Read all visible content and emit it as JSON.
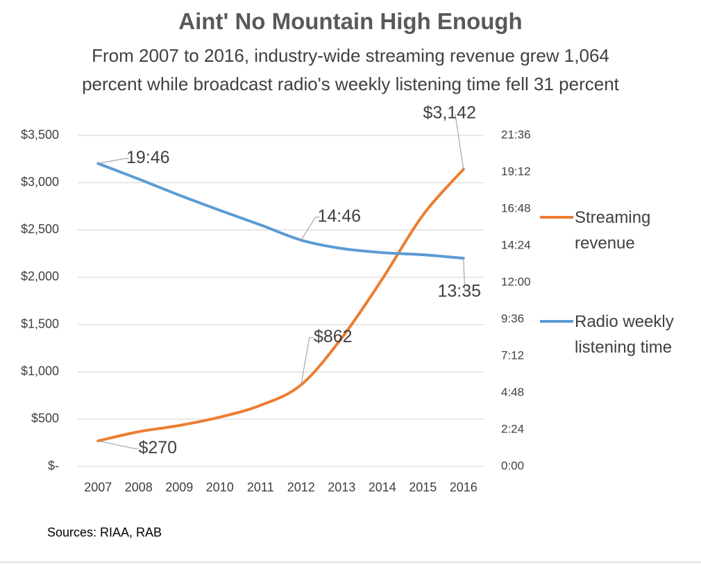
{
  "chart_data": {
    "type": "line",
    "title": "Aint' No Mountain High Enough",
    "subtitle": "From 2007 to 2016, industry-wide streaming revenue grew 1,064 percent while broadcast radio's weekly listening time fell 31 percent",
    "source": "Sources: RIAA, RAB",
    "categories": [
      "2007",
      "2008",
      "2009",
      "2010",
      "2011",
      "2012",
      "2013",
      "2014",
      "2015",
      "2016"
    ],
    "series": [
      {
        "name": "Streaming revenue",
        "color": "#ed7d31",
        "values": [
          270,
          367,
          433,
          521,
          646,
          862,
          1357,
          1981,
          2656,
          3142
        ],
        "value_labels": [
          "$270",
          null,
          null,
          null,
          null,
          "$862",
          null,
          null,
          null,
          "$3,142"
        ]
      },
      {
        "name": "Radio weekly listening time",
        "color": "#5b9bd5",
        "axis": "y2",
        "values": [
          19.767,
          18.75,
          17.7,
          16.71,
          15.76,
          14.767,
          14.22,
          13.95,
          13.81,
          13.583
        ],
        "value_labels": [
          "19:46",
          null,
          null,
          null,
          null,
          "14:46",
          null,
          null,
          null,
          "13:35"
        ]
      }
    ],
    "ylim": [
      0,
      3500
    ],
    "yticks": [
      {
        "value": 0,
        "label": "$-"
      },
      {
        "value": 500,
        "label": "$500"
      },
      {
        "value": 1000,
        "label": "$1,000"
      },
      {
        "value": 1500,
        "label": "$1,500"
      },
      {
        "value": 2000,
        "label": "$2,000"
      },
      {
        "value": 2500,
        "label": "$2,500"
      },
      {
        "value": 3000,
        "label": "$3,000"
      },
      {
        "value": 3500,
        "label": "$3,500"
      }
    ],
    "y2lim": [
      0,
      21.6
    ],
    "y2ticks": [
      {
        "value": 0,
        "label": "0:00"
      },
      {
        "value": 2.4,
        "label": "2:24"
      },
      {
        "value": 4.8,
        "label": "4:48"
      },
      {
        "value": 7.2,
        "label": "7:12"
      },
      {
        "value": 9.6,
        "label": "9:36"
      },
      {
        "value": 12,
        "label": "12:00"
      },
      {
        "value": 14.4,
        "label": "14:24"
      },
      {
        "value": 16.8,
        "label": "16:48"
      },
      {
        "value": 19.2,
        "label": "19:12"
      },
      {
        "value": 21.6,
        "label": "21:36"
      }
    ],
    "grid": true,
    "legend": "right"
  }
}
